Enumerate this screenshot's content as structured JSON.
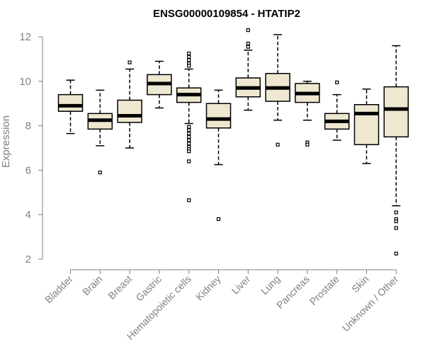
{
  "chart_data": {
    "type": "boxplot",
    "title": "ENSG00000109854 - HTATIP2",
    "xlabel": "",
    "ylabel": "Expression",
    "ylim": [
      2,
      12
    ],
    "yticks": [
      2,
      4,
      6,
      8,
      10,
      12
    ],
    "grid": false,
    "colors": {
      "box_fill": "#efe8d0",
      "box_stroke": "#000000",
      "axis": "#808080"
    },
    "categories": [
      "Bladder",
      "Brain",
      "Breast",
      "Gastric",
      "Hematopoietic cells",
      "Kidney",
      "Liver",
      "Lung",
      "Pancreas",
      "Prostate",
      "Skin",
      "Unknown / Other"
    ],
    "boxes": [
      {
        "name": "Bladder",
        "whisker_low": 7.65,
        "q1": 8.65,
        "median": 8.9,
        "q3": 9.4,
        "whisker_high": 10.05,
        "outliers": []
      },
      {
        "name": "Brain",
        "whisker_low": 7.1,
        "q1": 7.85,
        "median": 8.25,
        "q3": 8.55,
        "whisker_high": 9.6,
        "outliers": [
          5.9
        ]
      },
      {
        "name": "Breast",
        "whisker_low": 7.0,
        "q1": 8.15,
        "median": 8.45,
        "q3": 9.15,
        "whisker_high": 10.55,
        "outliers": [
          10.85
        ]
      },
      {
        "name": "Gastric",
        "whisker_low": 8.8,
        "q1": 9.4,
        "median": 9.9,
        "q3": 10.3,
        "whisker_high": 10.9,
        "outliers": []
      },
      {
        "name": "Hematopoietic cells",
        "whisker_low": 8.1,
        "q1": 9.05,
        "median": 9.4,
        "q3": 9.7,
        "whisker_high": 10.55,
        "outliers": [
          11.25,
          11.1,
          10.95,
          10.8,
          10.7,
          7.95,
          7.8,
          7.65,
          7.5,
          7.35,
          7.2,
          7.05,
          6.95,
          6.85,
          6.4,
          4.65
        ]
      },
      {
        "name": "Kidney",
        "whisker_low": 6.25,
        "q1": 7.9,
        "median": 8.3,
        "q3": 9.0,
        "whisker_high": 9.6,
        "outliers": [
          3.8
        ]
      },
      {
        "name": "Liver",
        "whisker_low": 8.7,
        "q1": 9.3,
        "median": 9.7,
        "q3": 10.15,
        "whisker_high": 11.4,
        "outliers": [
          12.3,
          11.7,
          11.55
        ]
      },
      {
        "name": "Lung",
        "whisker_low": 8.25,
        "q1": 9.1,
        "median": 9.7,
        "q3": 10.35,
        "whisker_high": 12.1,
        "outliers": [
          7.15
        ]
      },
      {
        "name": "Pancreas",
        "whisker_low": 8.25,
        "q1": 9.05,
        "median": 9.45,
        "q3": 9.9,
        "whisker_high": 10.0,
        "outliers": [
          7.25,
          7.15
        ]
      },
      {
        "name": "Prostate",
        "whisker_low": 7.35,
        "q1": 7.85,
        "median": 8.2,
        "q3": 8.55,
        "whisker_high": 9.4,
        "outliers": [
          9.95
        ]
      },
      {
        "name": "Skin",
        "whisker_low": 6.3,
        "q1": 7.15,
        "median": 8.55,
        "q3": 8.95,
        "whisker_high": 9.65,
        "outliers": []
      },
      {
        "name": "Unknown / Other",
        "whisker_low": 4.4,
        "q1": 7.5,
        "median": 8.75,
        "q3": 9.75,
        "whisker_high": 11.6,
        "outliers": [
          4.1,
          3.8,
          3.7,
          3.4,
          2.25
        ]
      }
    ]
  }
}
